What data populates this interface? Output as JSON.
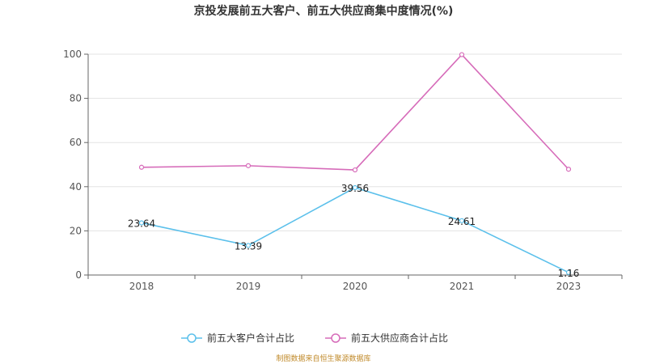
{
  "chart_data": {
    "type": "line",
    "title": "京投发展前五大客户、前五大供应商集中度情况(%)",
    "categories": [
      "2018",
      "2019",
      "2020",
      "2021",
      "2023"
    ],
    "ylim": [
      0,
      100
    ],
    "yticks": [
      0,
      20,
      40,
      60,
      80,
      100
    ],
    "grid": true,
    "legend_position": "bottom",
    "series": [
      {
        "name": "前五大客户合计占比",
        "color": "#5bc0eb",
        "values": [
          23.64,
          13.39,
          39.56,
          24.61,
          1.16
        ],
        "labels": [
          "23.64",
          "13.39",
          "39.56",
          "24.61",
          "1.16"
        ]
      },
      {
        "name": "前五大供应商合计占比",
        "color": "#d66bb9",
        "values": [
          48.8,
          49.5,
          47.6,
          99.8,
          47.9
        ]
      }
    ]
  },
  "footer": {
    "source": "制图数据来自恒生聚源数据库"
  }
}
